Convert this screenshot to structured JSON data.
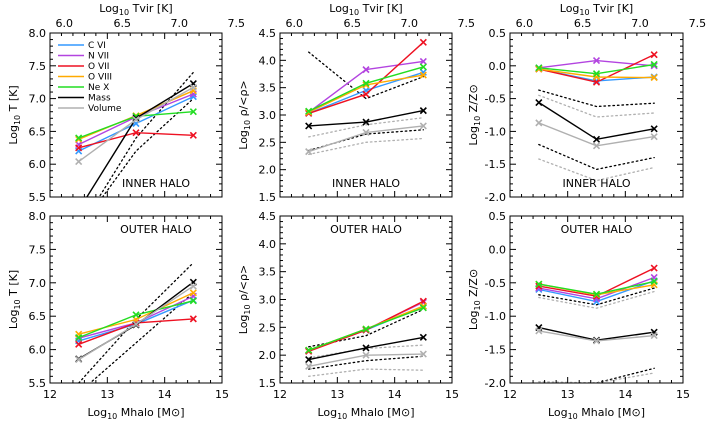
{
  "figure": {
    "top_axis_label": "Log10 Tvir [K]",
    "bottom_axis_label": "Log10 Mhalo [M⊙]",
    "top_ticks": [
      "6.0",
      "6.5",
      "7.0",
      "7.5"
    ],
    "bottom_ticks": [
      "12",
      "13",
      "14",
      "15"
    ],
    "legend": [
      {
        "name": "C VI",
        "color": "#3399ff"
      },
      {
        "name": "N VII",
        "color": "#b344e0"
      },
      {
        "name": "O VII",
        "color": "#ee1122"
      },
      {
        "name": "O VIII",
        "color": "#ffaa00"
      },
      {
        "name": "Ne X",
        "color": "#22dd22"
      },
      {
        "name": "Mass",
        "color": "#000000"
      },
      {
        "name": "Volume",
        "color": "#b0b0b0"
      }
    ]
  },
  "chart_data": [
    {
      "id": "T_inner",
      "type": "line",
      "annotation": "INNER HALO",
      "ylabel": "Log10 T [K]",
      "ylim": [
        5.5,
        8.0
      ],
      "yticks": [
        "5.5",
        "6.0",
        "6.5",
        "7.0",
        "7.5",
        "8.0"
      ],
      "xlim": [
        12,
        15
      ],
      "x": [
        12.5,
        13.5,
        14.5
      ],
      "series": [
        {
          "name": "C VI",
          "values": [
            6.2,
            6.62,
            7.03
          ]
        },
        {
          "name": "N VII",
          "values": [
            6.3,
            6.72,
            7.07
          ]
        },
        {
          "name": "O VII",
          "values": [
            6.25,
            6.48,
            6.44
          ]
        },
        {
          "name": "O VIII",
          "values": [
            6.38,
            6.74,
            7.12
          ]
        },
        {
          "name": "Ne X",
          "values": [
            6.4,
            6.73,
            6.8
          ]
        },
        {
          "name": "Mass",
          "values": [
            5.3,
            6.7,
            7.23
          ]
        },
        {
          "name": "Volume",
          "values": [
            6.04,
            6.68,
            7.17
          ]
        }
      ],
      "dotted": [
        {
          "color": "#000000",
          "values": [
            5.0,
            6.4,
            7.4
          ]
        },
        {
          "color": "#000000",
          "values": [
            5.0,
            6.2,
            7.0
          ]
        }
      ]
    },
    {
      "id": "rho_inner",
      "type": "line",
      "annotation": "INNER HALO",
      "ylabel": "Log10 ρ/<ρ>",
      "ylim": [
        1.5,
        4.5
      ],
      "yticks": [
        "1.5",
        "2.0",
        "2.5",
        "3.0",
        "3.5",
        "4.0",
        "4.5"
      ],
      "xlim": [
        12,
        15
      ],
      "x": [
        12.5,
        13.5,
        14.5
      ],
      "series": [
        {
          "name": "C VI",
          "values": [
            3.03,
            3.45,
            3.78
          ]
        },
        {
          "name": "N VII",
          "values": [
            3.05,
            3.83,
            3.98
          ]
        },
        {
          "name": "O VII",
          "values": [
            3.03,
            3.38,
            4.33
          ]
        },
        {
          "name": "O VIII",
          "values": [
            3.05,
            3.55,
            3.73
          ]
        },
        {
          "name": "Ne X",
          "values": [
            3.07,
            3.58,
            3.88
          ]
        },
        {
          "name": "Mass",
          "values": [
            2.8,
            2.87,
            3.08
          ]
        },
        {
          "name": "Volume",
          "values": [
            2.33,
            2.68,
            2.8
          ]
        }
      ],
      "dotted": [
        {
          "color": "#000000",
          "values": [
            4.15,
            3.3,
            3.7
          ]
        },
        {
          "color": "#000000",
          "values": [
            2.35,
            2.65,
            2.73
          ]
        },
        {
          "color": "#b0b0b0",
          "values": [
            2.6,
            2.82,
            2.95
          ]
        },
        {
          "color": "#b0b0b0",
          "values": [
            2.28,
            2.5,
            2.57
          ]
        }
      ]
    },
    {
      "id": "Z_inner",
      "type": "line",
      "annotation": "INNER HALO",
      "ylabel": "Log10 Z/Z⊙",
      "ylim": [
        -2.0,
        0.5
      ],
      "yticks": [
        "-2.0",
        "-1.5",
        "-1.0",
        "-0.5",
        "0.0",
        "0.5"
      ],
      "xlim": [
        12,
        15
      ],
      "x": [
        12.5,
        13.5,
        14.5
      ],
      "series": [
        {
          "name": "C VI",
          "values": [
            -0.05,
            -0.23,
            -0.17
          ]
        },
        {
          "name": "N VII",
          "values": [
            -0.03,
            0.08,
            0.0
          ]
        },
        {
          "name": "O VII",
          "values": [
            -0.05,
            -0.25,
            0.17
          ]
        },
        {
          "name": "O VIII",
          "values": [
            -0.05,
            -0.17,
            -0.18
          ]
        },
        {
          "name": "Ne X",
          "values": [
            -0.03,
            -0.12,
            0.02
          ]
        },
        {
          "name": "Mass",
          "values": [
            -0.56,
            -1.12,
            -0.96
          ]
        },
        {
          "name": "Volume",
          "values": [
            -0.87,
            -1.22,
            -1.08
          ]
        }
      ],
      "dotted": [
        {
          "color": "#000000",
          "values": [
            -0.37,
            -0.62,
            -0.57
          ]
        },
        {
          "color": "#000000",
          "values": [
            -1.2,
            -1.58,
            -1.4
          ]
        },
        {
          "color": "#b0b0b0",
          "values": [
            -0.45,
            -0.78,
            -0.72
          ]
        },
        {
          "color": "#b0b0b0",
          "values": [
            -1.42,
            -1.75,
            -1.55
          ]
        }
      ]
    },
    {
      "id": "T_outer",
      "type": "line",
      "annotation": "OUTER HALO",
      "ylabel": "Log10 T [K]",
      "ylim": [
        5.5,
        8.0
      ],
      "yticks": [
        "5.5",
        "6.0",
        "6.5",
        "7.0",
        "7.5",
        "8.0"
      ],
      "xlim": [
        12,
        15
      ],
      "x": [
        12.5,
        13.5,
        14.5
      ],
      "series": [
        {
          "name": "C VI",
          "values": [
            6.13,
            6.38,
            6.74
          ]
        },
        {
          "name": "N VII",
          "values": [
            6.17,
            6.4,
            6.8
          ]
        },
        {
          "name": "O VII",
          "values": [
            6.08,
            6.4,
            6.46
          ]
        },
        {
          "name": "O VIII",
          "values": [
            6.23,
            6.45,
            6.85
          ]
        },
        {
          "name": "Ne X",
          "values": [
            6.18,
            6.52,
            6.73
          ]
        },
        {
          "name": "Mass",
          "values": [
            5.86,
            6.37,
            7.01
          ]
        },
        {
          "name": "Volume",
          "values": [
            5.85,
            6.38,
            6.95
          ]
        }
      ],
      "dotted": [
        {
          "color": "#000000",
          "values": [
            5.5,
            6.45,
            7.3
          ]
        },
        {
          "color": "#000000",
          "values": [
            5.35,
            6.1,
            6.85
          ]
        }
      ]
    },
    {
      "id": "rho_outer",
      "type": "line",
      "annotation": "OUTER HALO",
      "ylabel": "Log10 ρ/<ρ>",
      "ylim": [
        1.5,
        4.5
      ],
      "yticks": [
        "1.5",
        "2.0",
        "2.5",
        "3.0",
        "3.5",
        "4.0",
        "4.5"
      ],
      "xlim": [
        12,
        15
      ],
      "x": [
        12.5,
        13.5,
        14.5
      ],
      "series": [
        {
          "name": "C VI",
          "values": [
            2.08,
            2.45,
            2.88
          ]
        },
        {
          "name": "N VII",
          "values": [
            2.08,
            2.46,
            2.95
          ]
        },
        {
          "name": "O VII",
          "values": [
            2.07,
            2.45,
            2.97
          ]
        },
        {
          "name": "O VIII",
          "values": [
            2.09,
            2.47,
            2.88
          ]
        },
        {
          "name": "Ne X",
          "values": [
            2.09,
            2.47,
            2.85
          ]
        },
        {
          "name": "Mass",
          "values": [
            1.92,
            2.13,
            2.32
          ]
        },
        {
          "name": "Volume",
          "values": [
            1.8,
            2.0,
            2.02
          ]
        }
      ],
      "dotted": [
        {
          "color": "#000000",
          "values": [
            2.15,
            2.35,
            2.82
          ]
        },
        {
          "color": "#000000",
          "values": [
            1.75,
            1.9,
            1.98
          ]
        },
        {
          "color": "#b0b0b0",
          "values": [
            1.95,
            2.12,
            2.18
          ]
        },
        {
          "color": "#b0b0b0",
          "values": [
            1.62,
            1.75,
            1.73
          ]
        }
      ]
    },
    {
      "id": "Z_outer",
      "type": "line",
      "annotation": "OUTER HALO",
      "ylabel": "Log10 Z/Z⊙",
      "ylim": [
        -2.0,
        0.5
      ],
      "yticks": [
        "-2.0",
        "-1.5",
        "-1.0",
        "-0.5",
        "0.0",
        "0.5"
      ],
      "xlim": [
        12,
        15
      ],
      "x": [
        12.5,
        13.5,
        14.5
      ],
      "series": [
        {
          "name": "C VI",
          "values": [
            -0.6,
            -0.78,
            -0.47
          ]
        },
        {
          "name": "N VII",
          "values": [
            -0.58,
            -0.74,
            -0.42
          ]
        },
        {
          "name": "O VII",
          "values": [
            -0.55,
            -0.7,
            -0.28
          ]
        },
        {
          "name": "O VIII",
          "values": [
            -0.52,
            -0.68,
            -0.53
          ]
        },
        {
          "name": "Ne X",
          "values": [
            -0.52,
            -0.67,
            -0.48
          ]
        },
        {
          "name": "Mass",
          "values": [
            -1.17,
            -1.36,
            -1.24
          ]
        },
        {
          "name": "Volume",
          "values": [
            -1.22,
            -1.37,
            -1.29
          ]
        }
      ],
      "dotted": [
        {
          "color": "#000000",
          "values": [
            -0.68,
            -0.83,
            -0.58
          ]
        },
        {
          "color": "#000000",
          "values": [
            -2.0,
            -2.0,
            -1.78
          ]
        },
        {
          "color": "#b0b0b0",
          "values": [
            -0.72,
            -0.88,
            -0.63
          ]
        },
        {
          "color": "#b0b0b0",
          "values": [
            -1.98,
            -2.0,
            -1.85
          ]
        }
      ]
    }
  ]
}
